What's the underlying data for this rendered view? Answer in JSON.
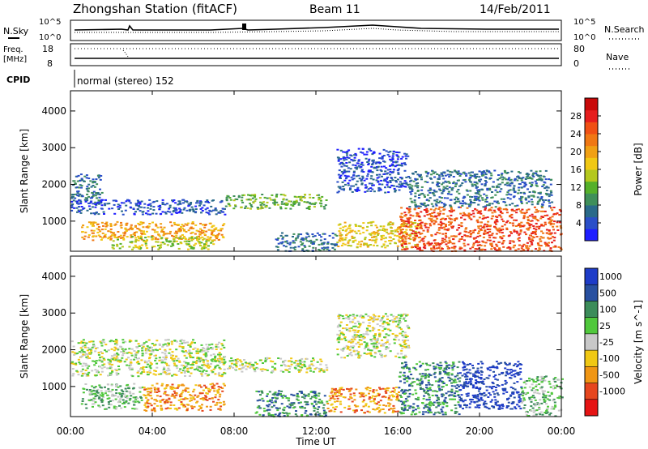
{
  "header": {
    "title": "Zhongshan Station (fitACF)",
    "beam": "Beam 11",
    "date": "14/Feb/2011"
  },
  "status_panel": {
    "nsky_label": "N.Sky",
    "nsky_ticks": [
      "10^5",
      "10^0"
    ],
    "nsearch_label": "N.Search",
    "nsearch_ticks": [
      "10^5",
      "10^0"
    ],
    "freq_label": "Freq.",
    "freq_unit": "[MHz]",
    "freq_ticks": [
      "18",
      "8"
    ],
    "nave_label": "Nave",
    "nave_ticks": [
      "80",
      "0"
    ],
    "cpid_label": "CPID",
    "cpid_value": "normal (stereo) 152"
  },
  "chart_data": [
    {
      "type": "heatmap",
      "title": "",
      "xlabel": "Time UT",
      "ylabel": "Slant Range [km]",
      "x_ticks": [
        "00:00",
        "04:00",
        "08:00",
        "12:00",
        "16:00",
        "20:00",
        "00:00"
      ],
      "y_ticks": [
        "1000",
        "2000",
        "3000",
        "4000"
      ],
      "xlim": [
        0,
        24
      ],
      "ylim": [
        180,
        4550
      ],
      "colorbar": {
        "label": "Power [dB]",
        "ticks": [
          "4",
          "8",
          "12",
          "16",
          "20",
          "24",
          "28"
        ],
        "colors": [
          "#1e1eff",
          "#2a4fc8",
          "#2a6a8a",
          "#3f8f5a",
          "#55b02a",
          "#b4c81e",
          "#f0c814",
          "#f0a014",
          "#f07814",
          "#f05014",
          "#e61e1e",
          "#c80a0a"
        ]
      },
      "regions": [
        {
          "t": [
            0.0,
            1.5
          ],
          "r": [
            1500,
            2300
          ],
          "level": 2
        },
        {
          "t": [
            0.0,
            7.5
          ],
          "r": [
            1200,
            1600
          ],
          "level": 1
        },
        {
          "t": [
            0.5,
            7.5
          ],
          "r": [
            500,
            1000
          ],
          "level": 7
        },
        {
          "t": [
            2.0,
            7.0
          ],
          "r": [
            250,
            600
          ],
          "level": 5
        },
        {
          "t": [
            7.5,
            12.5
          ],
          "r": [
            1350,
            1750
          ],
          "level": 4
        },
        {
          "t": [
            10.0,
            13.0
          ],
          "r": [
            200,
            700
          ],
          "level": 2
        },
        {
          "t": [
            13.0,
            16.5
          ],
          "r": [
            1800,
            3000
          ],
          "level": 1
        },
        {
          "t": [
            13.0,
            17.0
          ],
          "r": [
            300,
            1000
          ],
          "level": 6
        },
        {
          "t": [
            16.0,
            24.0
          ],
          "r": [
            200,
            1400
          ],
          "level": 9
        },
        {
          "t": [
            16.5,
            23.5
          ],
          "r": [
            1400,
            2400
          ],
          "level": 2
        }
      ]
    },
    {
      "type": "heatmap",
      "title": "",
      "xlabel": "Time UT",
      "ylabel": "Slant Range [km]",
      "x_ticks": [
        "00:00",
        "04:00",
        "08:00",
        "12:00",
        "16:00",
        "20:00",
        "00:00"
      ],
      "y_ticks": [
        "1000",
        "2000",
        "3000",
        "4000"
      ],
      "xlim": [
        0,
        24
      ],
      "ylim": [
        180,
        4550
      ],
      "colorbar": {
        "label": "Velocity [m s^-1]",
        "ticks": [
          "1000",
          "500",
          "100",
          "25",
          "-25",
          "-100",
          "-500",
          "-1000"
        ],
        "colors": [
          "#1e3cc8",
          "#2850a0",
          "#3c8c5a",
          "#50c83c",
          "#c8c8c8",
          "#f0c814",
          "#f09614",
          "#e6461e",
          "#e61414"
        ]
      },
      "regions": [
        {
          "t": [
            0.0,
            7.5
          ],
          "r": [
            1300,
            2300
          ],
          "level": 4
        },
        {
          "t": [
            0.5,
            3.5
          ],
          "r": [
            400,
            1100
          ],
          "level": 3
        },
        {
          "t": [
            3.5,
            7.5
          ],
          "r": [
            350,
            1100
          ],
          "level": 6
        },
        {
          "t": [
            7.5,
            12.5
          ],
          "r": [
            1400,
            1800
          ],
          "level": 4
        },
        {
          "t": [
            9.0,
            12.5
          ],
          "r": [
            200,
            900
          ],
          "level": 2
        },
        {
          "t": [
            12.5,
            16.0
          ],
          "r": [
            300,
            1000
          ],
          "level": 6
        },
        {
          "t": [
            13.0,
            16.5
          ],
          "r": [
            1800,
            3000
          ],
          "level": 4
        },
        {
          "t": [
            16.0,
            19.0
          ],
          "r": [
            250,
            1700
          ],
          "level": 2
        },
        {
          "t": [
            19.0,
            22.0
          ],
          "r": [
            400,
            1700
          ],
          "level": 0
        },
        {
          "t": [
            22.0,
            24.0
          ],
          "r": [
            200,
            1300
          ],
          "level": 3
        }
      ]
    }
  ]
}
